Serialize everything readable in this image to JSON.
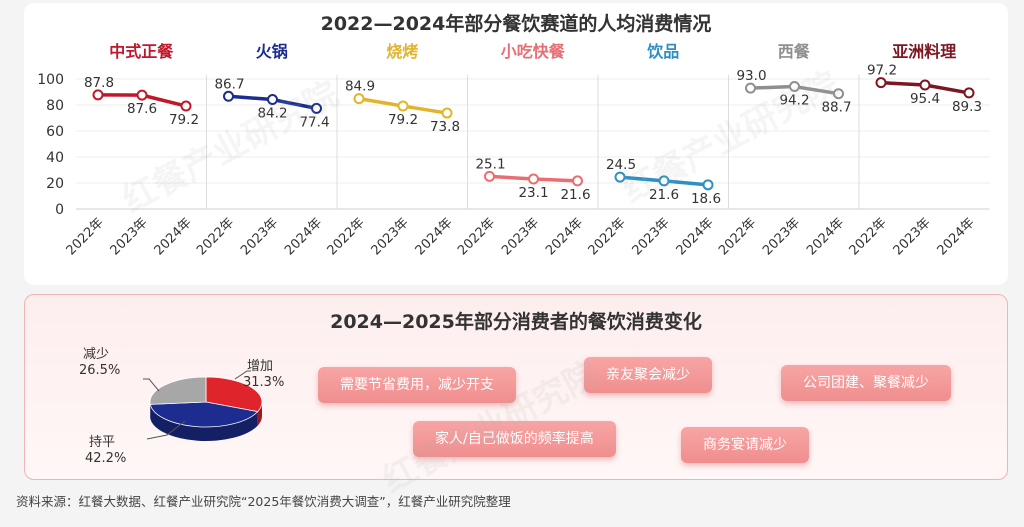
{
  "source": "资料来源：红餐大数据、红餐产业研究院“2025年餐饮消费大调查”，红餐产业研究院整理",
  "watermark": "红餐产业研究院",
  "chart_data": [
    {
      "type": "line",
      "title": "2022—2024年部分餐饮赛道的人均消费情况",
      "yaxis": {
        "ticks": [
          0,
          20,
          40,
          60,
          80,
          100
        ],
        "ylim": [
          0,
          100
        ]
      },
      "grid": true,
      "series": [
        {
          "name": "中式正餐",
          "color": "#c0182a",
          "x": [
            "2022年",
            "2023年",
            "2024年"
          ],
          "values": [
            87.8,
            87.6,
            79.2
          ]
        },
        {
          "name": "火锅",
          "color": "#1c2d8f",
          "x": [
            "2022年",
            "2023年",
            "2024年"
          ],
          "values": [
            86.7,
            84.2,
            77.4
          ]
        },
        {
          "name": "烧烤",
          "color": "#e2b429",
          "x": [
            "2022年",
            "2023年",
            "2024年"
          ],
          "values": [
            84.9,
            79.2,
            73.8
          ]
        },
        {
          "name": "小吃快餐",
          "color": "#e76f73",
          "x": [
            "2022年",
            "2023年",
            "2024年"
          ],
          "values": [
            25.1,
            23.1,
            21.6
          ]
        },
        {
          "name": "饮品",
          "color": "#2e8fc4",
          "x": [
            "2022年",
            "2023年",
            "2024年"
          ],
          "values": [
            24.5,
            21.6,
            18.6
          ]
        },
        {
          "name": "西餐",
          "color": "#8f8f8f",
          "x": [
            "2022年",
            "2023年",
            "2024年"
          ],
          "values": [
            93.0,
            94.2,
            88.7
          ]
        },
        {
          "name": "亚洲料理",
          "color": "#7d1620",
          "x": [
            "2022年",
            "2023年",
            "2024年"
          ],
          "values": [
            97.2,
            95.4,
            89.3
          ]
        }
      ]
    },
    {
      "type": "pie",
      "title": "2024—2025年部分消费者的餐饮消费变化",
      "slices": [
        {
          "label": "增加",
          "value": 31.3,
          "value_text": "31.3%",
          "color": "#e0242b"
        },
        {
          "label": "持平",
          "value": 42.2,
          "value_text": "42.2%",
          "color": "#1c2d8f"
        },
        {
          "label": "减少",
          "value": 26.5,
          "value_text": "26.5%",
          "color": "#a7a7a7"
        }
      ]
    }
  ],
  "tags": [
    "需要节省费用，减少开支",
    "亲友聚会减少",
    "公司团建、聚餐减少",
    "家人/自己做饭的频率提高",
    "商务宴请减少"
  ]
}
